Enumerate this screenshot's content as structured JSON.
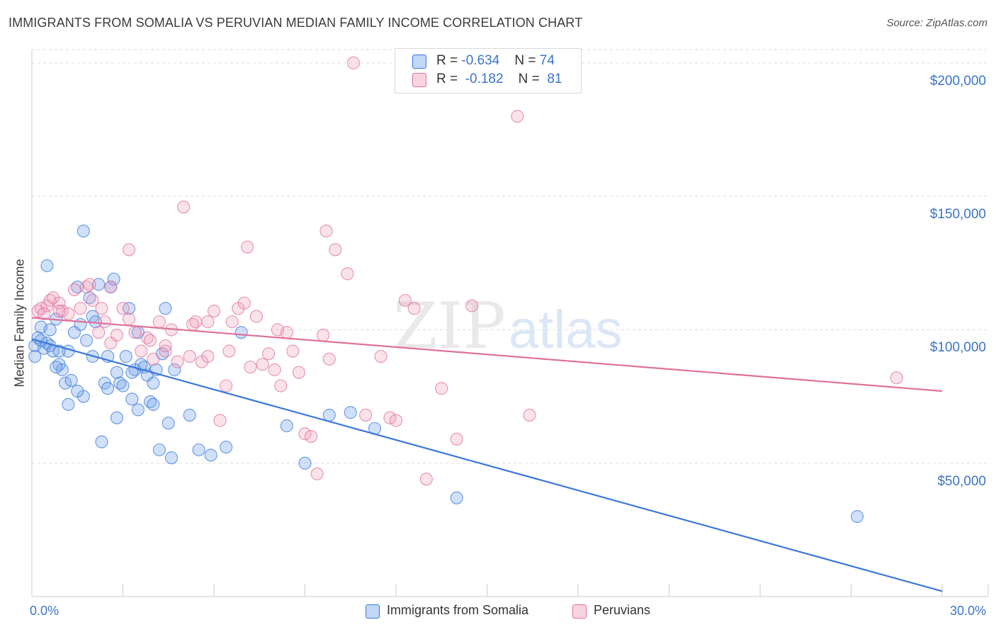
{
  "title": "IMMIGRANTS FROM SOMALIA VS PERUVIAN MEDIAN FAMILY INCOME CORRELATION CHART",
  "source": "Source: ZipAtlas.com",
  "watermark": {
    "zip": "ZIP",
    "atlas": "atlas"
  },
  "colors": {
    "blue": "#3b78d8",
    "blue_fill": "rgba(120,165,235,0.35)",
    "pink": "#e0709a",
    "pink_fill": "rgba(240,160,190,0.30)",
    "axis_text": "#3b74c7",
    "grid": "#dddddd"
  },
  "legend_top": {
    "rows": [
      {
        "r_label": "R =",
        "r_value": "-0.634",
        "n_label": "N =",
        "n_value": "74"
      },
      {
        "r_label": "R =",
        "r_value": "-0.182",
        "n_label": "N =",
        "n_value": "81"
      }
    ]
  },
  "chart_data": {
    "type": "scatter",
    "title": "IMMIGRANTS FROM SOMALIA VS PERUVIAN MEDIAN FAMILY INCOME CORRELATION CHART",
    "xlabel": "",
    "ylabel": "Median Family Income",
    "xlim": [
      0,
      30
    ],
    "ylim": [
      0,
      205000
    ],
    "x_tick_labels": [
      "0.0%",
      "30.0%"
    ],
    "y_ticks": [
      50000,
      100000,
      150000,
      200000
    ],
    "y_tick_labels": [
      "$50,000",
      "$100,000",
      "$150,000",
      "$200,000"
    ],
    "grid": true,
    "legend_position": "bottom",
    "series": [
      {
        "name": "Immigrants from Somalia",
        "color": "#3b78d8",
        "trend": {
          "x": [
            0,
            30
          ],
          "y": [
            96500,
            2000
          ]
        },
        "points": [
          [
            0.1,
            94000
          ],
          [
            0.2,
            97000
          ],
          [
            0.3,
            101000
          ],
          [
            0.4,
            93000
          ],
          [
            0.5,
            95000
          ],
          [
            0.6,
            94000
          ],
          [
            0.7,
            92000
          ],
          [
            0.8,
            104000
          ],
          [
            0.9,
            87000
          ],
          [
            1.0,
            85000
          ],
          [
            1.1,
            80000
          ],
          [
            1.2,
            92000
          ],
          [
            1.3,
            81000
          ],
          [
            1.4,
            99000
          ],
          [
            1.5,
            116000
          ],
          [
            1.6,
            102000
          ],
          [
            1.7,
            75000
          ],
          [
            1.8,
            96000
          ],
          [
            1.9,
            112000
          ],
          [
            2.0,
            105000
          ],
          [
            2.1,
            103000
          ],
          [
            2.2,
            117000
          ],
          [
            2.3,
            58000
          ],
          [
            2.4,
            80000
          ],
          [
            2.5,
            90000
          ],
          [
            2.6,
            116000
          ],
          [
            2.7,
            119000
          ],
          [
            2.8,
            84000
          ],
          [
            2.9,
            80000
          ],
          [
            3.0,
            79000
          ],
          [
            3.1,
            90000
          ],
          [
            3.2,
            108000
          ],
          [
            3.3,
            74000
          ],
          [
            3.4,
            85000
          ],
          [
            3.5,
            99000
          ],
          [
            3.6,
            87000
          ],
          [
            3.7,
            86000
          ],
          [
            3.8,
            83000
          ],
          [
            3.9,
            73000
          ],
          [
            4.0,
            72000
          ],
          [
            4.1,
            85000
          ],
          [
            4.2,
            55000
          ],
          [
            4.3,
            91000
          ],
          [
            4.4,
            108000
          ],
          [
            4.5,
            65000
          ],
          [
            4.6,
            52000
          ],
          [
            4.7,
            85000
          ],
          [
            5.2,
            68000
          ],
          [
            5.5,
            55000
          ],
          [
            5.9,
            53000
          ],
          [
            6.4,
            56000
          ],
          [
            6.9,
            99000
          ],
          [
            8.4,
            64000
          ],
          [
            9.0,
            50000
          ],
          [
            9.8,
            68000
          ],
          [
            10.5,
            69000
          ],
          [
            11.3,
            63000
          ],
          [
            14.0,
            37000
          ],
          [
            27.2,
            30000
          ],
          [
            0.1,
            90000
          ],
          [
            0.3,
            96000
          ],
          [
            0.5,
            124000
          ],
          [
            1.7,
            137000
          ],
          [
            2.0,
            90000
          ],
          [
            0.8,
            86000
          ],
          [
            1.2,
            72000
          ],
          [
            3.3,
            84000
          ],
          [
            2.8,
            67000
          ],
          [
            1.5,
            77000
          ],
          [
            0.9,
            92000
          ],
          [
            4.0,
            80000
          ],
          [
            2.5,
            78000
          ],
          [
            3.5,
            70000
          ],
          [
            0.6,
            100000
          ]
        ]
      },
      {
        "name": "Peruvians",
        "color": "#e0709a",
        "trend": {
          "x": [
            0,
            30
          ],
          "y": [
            104500,
            77000
          ]
        },
        "points": [
          [
            0.2,
            107000
          ],
          [
            0.3,
            108000
          ],
          [
            0.5,
            109000
          ],
          [
            0.7,
            112000
          ],
          [
            0.9,
            110000
          ],
          [
            1.0,
            107000
          ],
          [
            1.2,
            106000
          ],
          [
            1.4,
            115000
          ],
          [
            1.6,
            108000
          ],
          [
            1.8,
            116000
          ],
          [
            2.0,
            111000
          ],
          [
            2.2,
            99000
          ],
          [
            2.4,
            103000
          ],
          [
            2.6,
            95000
          ],
          [
            2.8,
            98000
          ],
          [
            3.0,
            108000
          ],
          [
            3.2,
            104000
          ],
          [
            3.4,
            99000
          ],
          [
            3.6,
            92000
          ],
          [
            3.8,
            97000
          ],
          [
            4.0,
            89000
          ],
          [
            4.2,
            103000
          ],
          [
            4.4,
            92000
          ],
          [
            4.6,
            100000
          ],
          [
            4.8,
            88000
          ],
          [
            5.0,
            146000
          ],
          [
            5.2,
            90000
          ],
          [
            5.4,
            103000
          ],
          [
            5.6,
            88000
          ],
          [
            5.8,
            103000
          ],
          [
            6.0,
            107000
          ],
          [
            6.2,
            66000
          ],
          [
            6.4,
            79000
          ],
          [
            6.6,
            103000
          ],
          [
            6.8,
            108000
          ],
          [
            7.0,
            110000
          ],
          [
            7.2,
            86000
          ],
          [
            7.4,
            105000
          ],
          [
            7.6,
            87000
          ],
          [
            7.8,
            91000
          ],
          [
            8.0,
            85000
          ],
          [
            8.2,
            79000
          ],
          [
            8.4,
            99000
          ],
          [
            8.6,
            92000
          ],
          [
            8.8,
            84000
          ],
          [
            9.0,
            61000
          ],
          [
            9.2,
            60000
          ],
          [
            9.4,
            46000
          ],
          [
            9.6,
            98000
          ],
          [
            9.8,
            89000
          ],
          [
            10.0,
            130000
          ],
          [
            10.4,
            121000
          ],
          [
            10.6,
            200000
          ],
          [
            11.0,
            68000
          ],
          [
            11.5,
            90000
          ],
          [
            11.8,
            67000
          ],
          [
            12.0,
            66000
          ],
          [
            12.3,
            111000
          ],
          [
            12.6,
            108000
          ],
          [
            13.0,
            44000
          ],
          [
            13.5,
            78000
          ],
          [
            14.0,
            59000
          ],
          [
            14.5,
            109000
          ],
          [
            16.0,
            180000
          ],
          [
            16.4,
            68000
          ],
          [
            28.5,
            82000
          ],
          [
            9.7,
            137000
          ],
          [
            7.1,
            131000
          ],
          [
            3.2,
            130000
          ],
          [
            1.9,
            117000
          ],
          [
            2.3,
            108000
          ],
          [
            0.9,
            107000
          ],
          [
            0.6,
            111000
          ],
          [
            4.4,
            94000
          ],
          [
            5.3,
            102000
          ],
          [
            6.5,
            92000
          ],
          [
            3.9,
            96000
          ],
          [
            2.6,
            116000
          ],
          [
            5.8,
            90000
          ],
          [
            8.1,
            100000
          ],
          [
            0.4,
            106000
          ]
        ]
      }
    ]
  },
  "bottom_legend": [
    {
      "label": "Immigrants from Somalia"
    },
    {
      "label": "Peruvians"
    }
  ]
}
